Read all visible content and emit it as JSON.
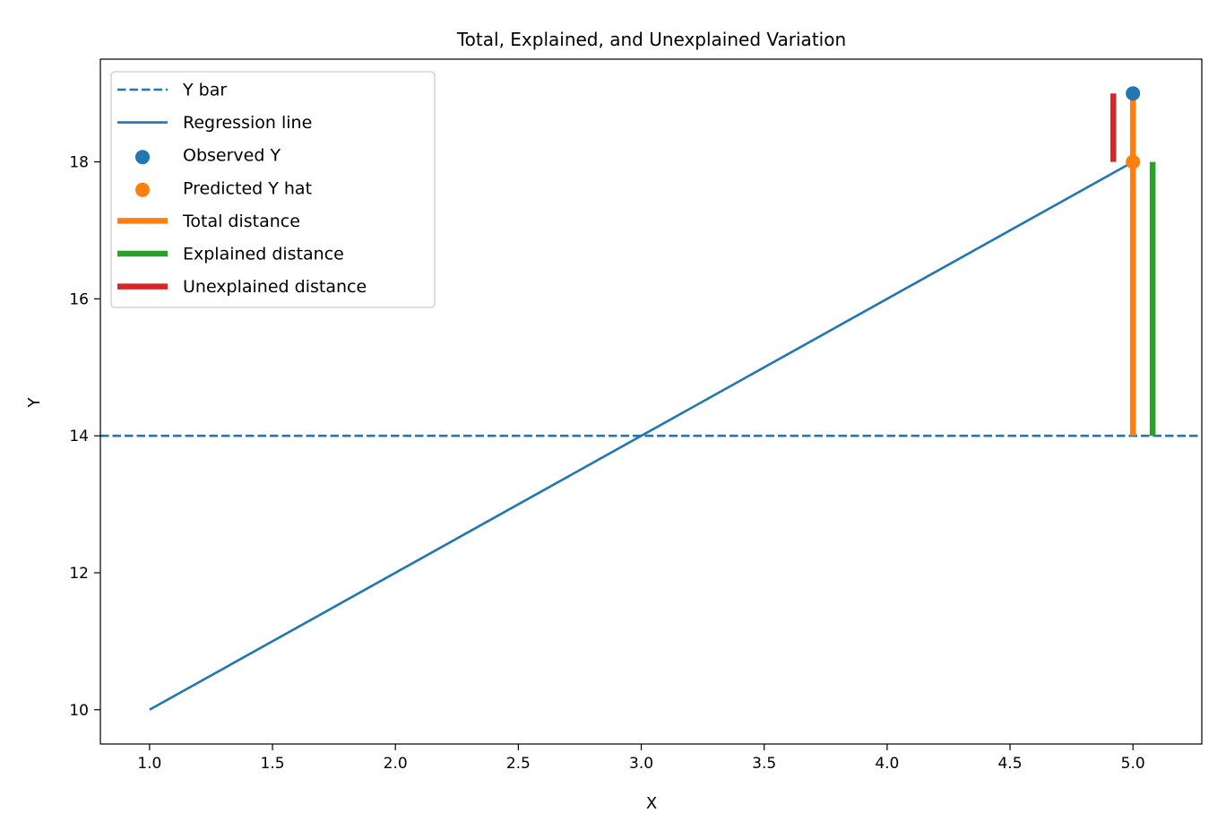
{
  "chart_data": {
    "type": "line",
    "title": "Total, Explained, and Unexplained Variation",
    "xlabel": "X",
    "ylabel": "Y",
    "xlim": [
      0.8,
      5.28
    ],
    "ylim": [
      9.5,
      19.5
    ],
    "xticks": [
      1.0,
      1.5,
      2.0,
      2.5,
      3.0,
      3.5,
      4.0,
      4.5,
      5.0
    ],
    "xtick_labels": [
      "1.0",
      "1.5",
      "2.0",
      "2.5",
      "3.0",
      "3.5",
      "4.0",
      "4.5",
      "5.0"
    ],
    "yticks": [
      10,
      12,
      14,
      16,
      18
    ],
    "ytick_labels": [
      "10",
      "12",
      "14",
      "16",
      "18"
    ],
    "grid": false,
    "legend_position": "upper-left",
    "series": [
      {
        "name": "Y bar",
        "kind": "hline",
        "y": 14,
        "style": "dashed",
        "color": "#1f77b4"
      },
      {
        "name": "Regression line",
        "kind": "line",
        "x": [
          1,
          5
        ],
        "y": [
          10,
          18
        ],
        "style": "solid",
        "color": "#1f77b4"
      },
      {
        "name": "Observed Y",
        "kind": "scatter",
        "x": [
          5
        ],
        "y": [
          19
        ],
        "color": "#1f77b4"
      },
      {
        "name": "Predicted Y hat",
        "kind": "scatter",
        "x": [
          5
        ],
        "y": [
          18
        ],
        "color": "#ff7f0e"
      },
      {
        "name": "Total distance",
        "kind": "vline",
        "x": 5.0,
        "y": [
          14,
          19
        ],
        "color": "#ff7f0e"
      },
      {
        "name": "Explained distance",
        "kind": "vline",
        "x": 5.08,
        "y": [
          14,
          18
        ],
        "color": "#2ca02c"
      },
      {
        "name": "Unexplained distance",
        "kind": "vline",
        "x": 4.92,
        "y": [
          18,
          19
        ],
        "color": "#d62728"
      }
    ]
  }
}
